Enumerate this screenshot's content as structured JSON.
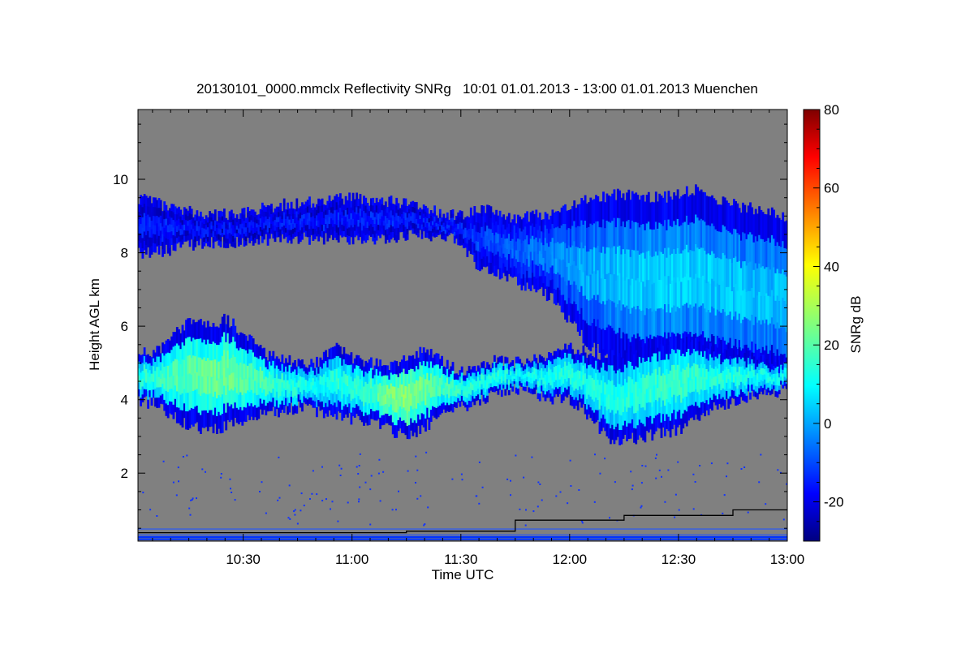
{
  "chart_data": {
    "type": "heatmap",
    "title": "20130101_0000.mmclx Reflectivity SNRg   10:01 01.01.2013 - 13:00 01.01.2013 Muenchen",
    "xlabel": "Time UTC",
    "ylabel": "Height AGL km",
    "colorbar_label": "SNRg dB",
    "x_unit": "minutes since 10:00 UTC",
    "xlim": [
      1,
      180
    ],
    "ylim": [
      0.15,
      11.9
    ],
    "x_ticks": [
      {
        "value": 30,
        "label": "10:30"
      },
      {
        "value": 60,
        "label": "11:00"
      },
      {
        "value": 90,
        "label": "11:30"
      },
      {
        "value": 120,
        "label": "12:00"
      },
      {
        "value": 150,
        "label": "12:30"
      },
      {
        "value": 180,
        "label": "13:00"
      }
    ],
    "y_ticks": [
      {
        "value": 2,
        "label": "2"
      },
      {
        "value": 4,
        "label": "4"
      },
      {
        "value": 6,
        "label": "6"
      },
      {
        "value": 8,
        "label": "8"
      },
      {
        "value": 10,
        "label": "10"
      }
    ],
    "colorbar": {
      "range": [
        -30,
        80
      ],
      "ticks": [
        {
          "value": -20,
          "label": "-20"
        },
        {
          "value": 0,
          "label": "0"
        },
        {
          "value": 20,
          "label": "20"
        },
        {
          "value": 40,
          "label": "40"
        },
        {
          "value": 60,
          "label": "60"
        },
        {
          "value": 80,
          "label": "80"
        }
      ],
      "colormap": "jet"
    },
    "no_signal_color": "#808080",
    "cloud_layers": [
      {
        "name": "upper layer",
        "points": [
          [
            1,
            9.5,
            8.0,
            -14
          ],
          [
            10,
            9.2,
            8.1,
            -13
          ],
          [
            20,
            9.0,
            8.3,
            -15
          ],
          [
            30,
            9.1,
            8.3,
            -15
          ],
          [
            40,
            9.3,
            8.4,
            -14
          ],
          [
            50,
            9.4,
            8.4,
            -14
          ],
          [
            60,
            9.5,
            8.4,
            -13
          ],
          [
            70,
            9.4,
            8.4,
            -13
          ],
          [
            80,
            9.2,
            8.5,
            -14
          ],
          [
            88,
            9.0,
            8.4,
            -12
          ],
          [
            95,
            9.2,
            7.6,
            -10
          ],
          [
            105,
            8.9,
            7.2,
            -6
          ],
          [
            115,
            9.1,
            6.8,
            -2
          ],
          [
            125,
            9.5,
            5.5,
            2
          ],
          [
            135,
            9.6,
            5.0,
            5
          ],
          [
            145,
            9.5,
            4.9,
            6
          ],
          [
            155,
            9.7,
            5.0,
            6
          ],
          [
            165,
            9.3,
            4.8,
            5
          ],
          [
            175,
            9.1,
            4.6,
            4
          ],
          [
            180,
            9.0,
            4.5,
            4
          ]
        ]
      },
      {
        "name": "mid layer",
        "points": [
          [
            1,
            5.4,
            4.0,
            14
          ],
          [
            5,
            5.2,
            3.9,
            16
          ],
          [
            10,
            5.8,
            3.6,
            18
          ],
          [
            15,
            6.1,
            3.3,
            20
          ],
          [
            20,
            6.0,
            3.2,
            22
          ],
          [
            25,
            6.2,
            3.3,
            22
          ],
          [
            30,
            5.8,
            3.4,
            20
          ],
          [
            35,
            5.3,
            3.6,
            18
          ],
          [
            40,
            5.1,
            3.7,
            16
          ],
          [
            45,
            5.0,
            3.8,
            14
          ],
          [
            50,
            5.0,
            3.7,
            12
          ],
          [
            55,
            5.5,
            3.6,
            14
          ],
          [
            60,
            5.1,
            3.5,
            16
          ],
          [
            65,
            5.0,
            3.4,
            18
          ],
          [
            70,
            4.9,
            3.2,
            24
          ],
          [
            75,
            5.2,
            3.0,
            26
          ],
          [
            80,
            5.4,
            3.3,
            22
          ],
          [
            85,
            5.0,
            3.6,
            18
          ],
          [
            90,
            4.8,
            3.8,
            16
          ],
          [
            95,
            4.9,
            4.0,
            14
          ],
          [
            100,
            5.1,
            4.2,
            14
          ],
          [
            105,
            5.0,
            4.3,
            12
          ],
          [
            110,
            5.1,
            4.2,
            12
          ],
          [
            115,
            5.3,
            4.0,
            14
          ],
          [
            120,
            5.4,
            4.0,
            14
          ],
          [
            125,
            5.3,
            3.6,
            14
          ],
          [
            130,
            5.2,
            3.0,
            13
          ],
          [
            135,
            5.3,
            2.9,
            14
          ],
          [
            140,
            5.5,
            3.0,
            15
          ],
          [
            145,
            5.6,
            3.1,
            16
          ],
          [
            150,
            5.7,
            3.2,
            16
          ],
          [
            155,
            5.6,
            3.5,
            15
          ],
          [
            160,
            5.4,
            3.8,
            14
          ],
          [
            165,
            5.3,
            4.0,
            14
          ],
          [
            170,
            5.2,
            4.1,
            13
          ],
          [
            175,
            5.0,
            4.2,
            12
          ],
          [
            180,
            5.0,
            4.3,
            12
          ]
        ]
      }
    ],
    "overlay_line": {
      "color": "#000000",
      "points": [
        [
          1,
          0.38
        ],
        [
          75,
          0.38
        ],
        [
          75,
          0.42
        ],
        [
          105,
          0.42
        ],
        [
          105,
          0.72
        ],
        [
          135,
          0.72
        ],
        [
          135,
          0.85
        ],
        [
          165,
          0.85
        ],
        [
          165,
          1.0
        ],
        [
          180,
          1.0
        ]
      ]
    }
  }
}
